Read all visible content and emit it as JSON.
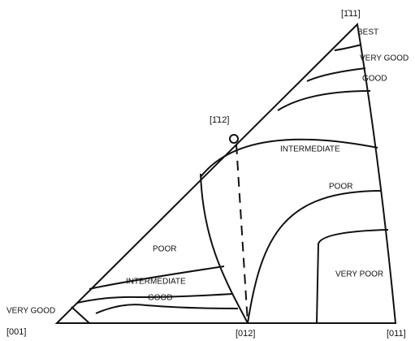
{
  "diagram": {
    "vertices": {
      "top": "[1̄11]",
      "mid": "[1̄12]",
      "left": "[001]",
      "bottom_mid": "[012]",
      "right": "[011]"
    },
    "regions": {
      "best": "BEST",
      "very_good_right": "VERY GOOD",
      "good_right": "GOOD",
      "intermediate_right": "INTERMEDIATE",
      "poor_right": "POOR",
      "very_poor": "VERY POOR",
      "poor_left": "POOR",
      "intermediate_left": "INTERMEDIATE",
      "good_left": "GOOD",
      "very_good_left": "VERY GOOD"
    }
  }
}
